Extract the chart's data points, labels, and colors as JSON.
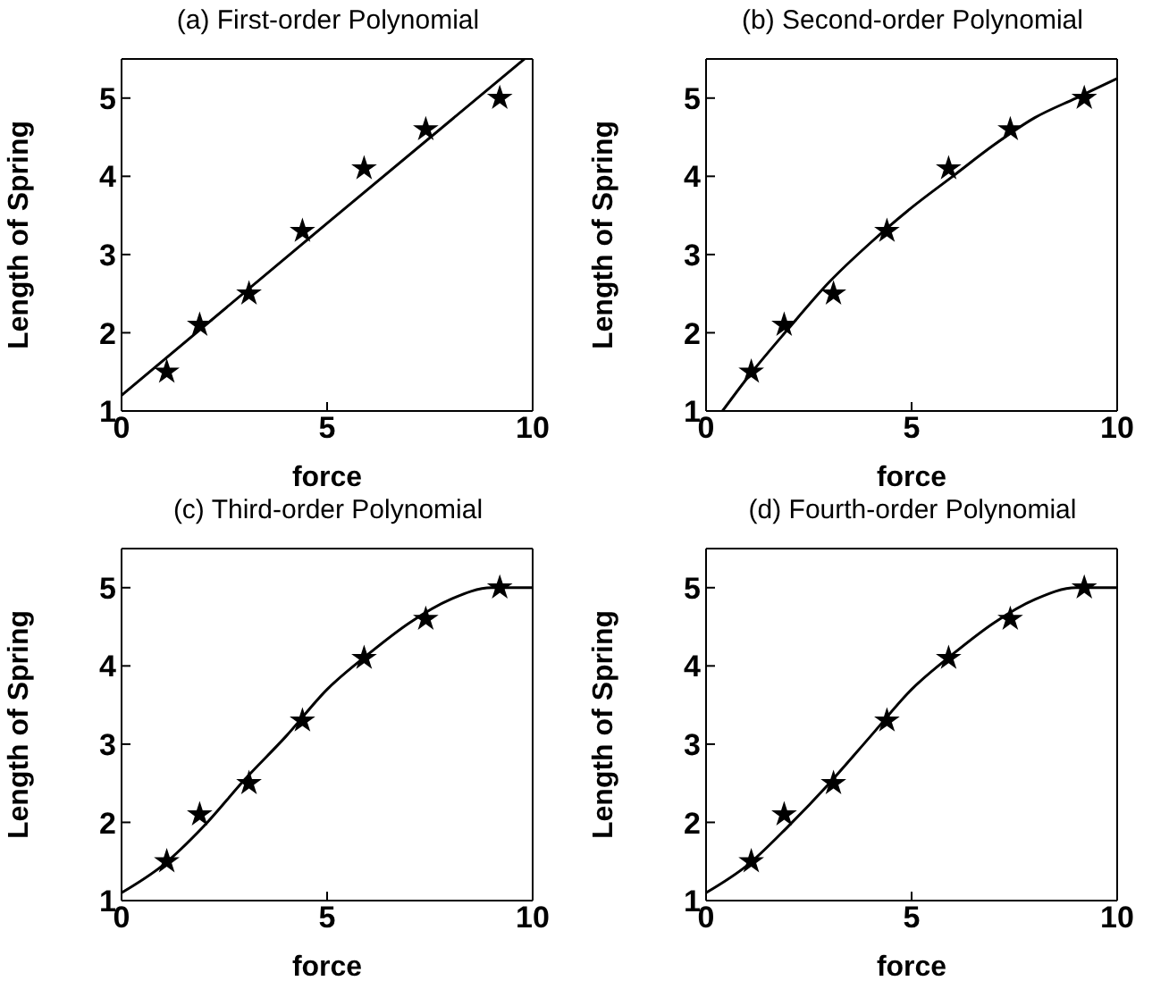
{
  "chart_data": [
    {
      "type": "scatter",
      "title": "(a) First-order Polynomial",
      "xlabel": "force",
      "ylabel": "Length of Spring",
      "xlim": [
        0,
        10
      ],
      "xticks": [
        0,
        5,
        10
      ],
      "ylim": [
        1,
        5.5
      ],
      "yticks": [
        1,
        2,
        3,
        4,
        5
      ],
      "series": [
        {
          "type": "scatter",
          "marker": "star",
          "color": "#000000",
          "x": [
            1.1,
            1.9,
            3.1,
            4.4,
            5.9,
            7.4,
            9.2
          ],
          "values": [
            1.5,
            2.1,
            2.5,
            3.3,
            4.1,
            4.6,
            5.0
          ]
        },
        {
          "type": "line",
          "marker": "none",
          "line_style": "solid",
          "color": "#000000",
          "x": [
            0,
            5,
            9.8
          ],
          "values": [
            1.2,
            3.4,
            5.5
          ]
        }
      ]
    },
    {
      "type": "scatter",
      "title": "(b) Second-order Polynomial",
      "xlabel": "force",
      "ylabel": "Length of Spring",
      "xlim": [
        0,
        10
      ],
      "xticks": [
        0,
        5,
        10
      ],
      "ylim": [
        1,
        5.5
      ],
      "yticks": [
        1,
        2,
        3,
        4,
        5
      ],
      "series": [
        {
          "type": "scatter",
          "marker": "star",
          "color": "#000000",
          "x": [
            1.1,
            1.9,
            3.1,
            4.4,
            5.9,
            7.4,
            9.2
          ],
          "values": [
            1.5,
            2.1,
            2.5,
            3.3,
            4.1,
            4.6,
            5.0
          ]
        },
        {
          "type": "line",
          "marker": "none",
          "line_style": "solid",
          "color": "#000000",
          "x": [
            0.4,
            1,
            2,
            3,
            4,
            5,
            6,
            7,
            8,
            9,
            10
          ],
          "values": [
            1.0,
            1.42,
            2.05,
            2.65,
            3.15,
            3.6,
            4.0,
            4.4,
            4.75,
            5.0,
            5.25
          ]
        }
      ]
    },
    {
      "type": "scatter",
      "title": "(c) Third-order Polynomial",
      "xlabel": "force",
      "ylabel": "Length of Spring",
      "xlim": [
        0,
        10
      ],
      "xticks": [
        0,
        5,
        10
      ],
      "ylim": [
        1,
        5.5
      ],
      "yticks": [
        1,
        2,
        3,
        4,
        5
      ],
      "series": [
        {
          "type": "scatter",
          "marker": "star",
          "color": "#000000",
          "x": [
            1.1,
            1.9,
            3.1,
            4.4,
            5.9,
            7.4,
            9.2
          ],
          "values": [
            1.5,
            2.1,
            2.5,
            3.3,
            4.1,
            4.6,
            5.0
          ]
        },
        {
          "type": "line",
          "marker": "none",
          "line_style": "solid",
          "color": "#000000",
          "x": [
            0,
            1,
            2,
            3,
            4,
            5,
            6,
            7,
            8,
            9,
            10
          ],
          "values": [
            1.1,
            1.45,
            1.95,
            2.55,
            3.1,
            3.7,
            4.15,
            4.55,
            4.85,
            5.0,
            5.0
          ]
        }
      ]
    },
    {
      "type": "scatter",
      "title": "(d) Fourth-order Polynomial",
      "xlabel": "force",
      "ylabel": "Length of Spring",
      "xlim": [
        0,
        10
      ],
      "xticks": [
        0,
        5,
        10
      ],
      "ylim": [
        1,
        5.5
      ],
      "yticks": [
        1,
        2,
        3,
        4,
        5
      ],
      "series": [
        {
          "type": "scatter",
          "marker": "star",
          "color": "#000000",
          "x": [
            1.1,
            1.9,
            3.1,
            4.4,
            5.9,
            7.4,
            9.2
          ],
          "values": [
            1.5,
            2.1,
            2.5,
            3.3,
            4.1,
            4.6,
            5.0
          ]
        },
        {
          "type": "line",
          "marker": "none",
          "line_style": "solid",
          "color": "#000000",
          "x": [
            0,
            1,
            2,
            3,
            4,
            5,
            6,
            7,
            8,
            9,
            10
          ],
          "values": [
            1.1,
            1.45,
            1.95,
            2.5,
            3.1,
            3.7,
            4.15,
            4.55,
            4.85,
            5.0,
            5.0
          ]
        }
      ]
    }
  ]
}
